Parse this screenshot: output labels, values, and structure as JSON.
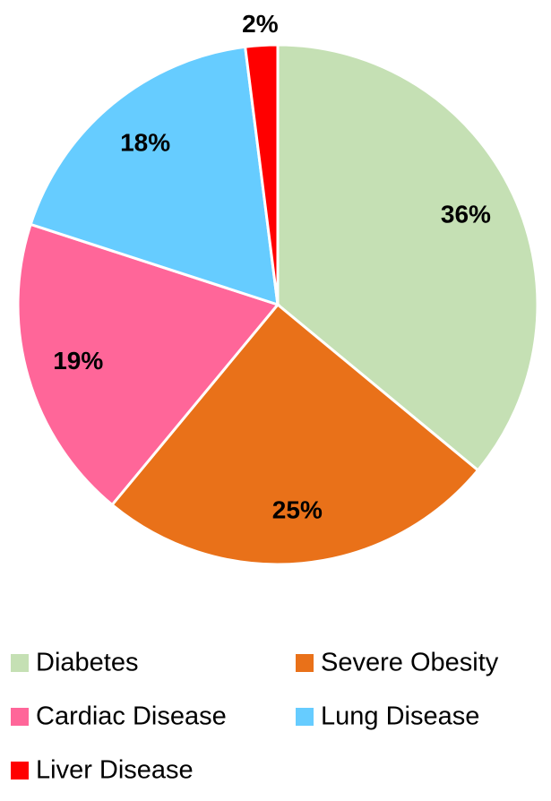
{
  "chart_data": {
    "type": "pie",
    "categories": [
      "Diabetes",
      "Severe Obesity",
      "Cardiac Disease",
      "Lung Disease",
      "Liver Disease"
    ],
    "values": [
      36,
      25,
      19,
      18,
      2
    ],
    "value_labels": [
      "36%",
      "25%",
      "19%",
      "18%",
      "2%"
    ],
    "colors": [
      "#c5e0b4",
      "#e97119",
      "#ff6699",
      "#66ccff",
      "#ff0000"
    ],
    "legend": "bottom"
  }
}
